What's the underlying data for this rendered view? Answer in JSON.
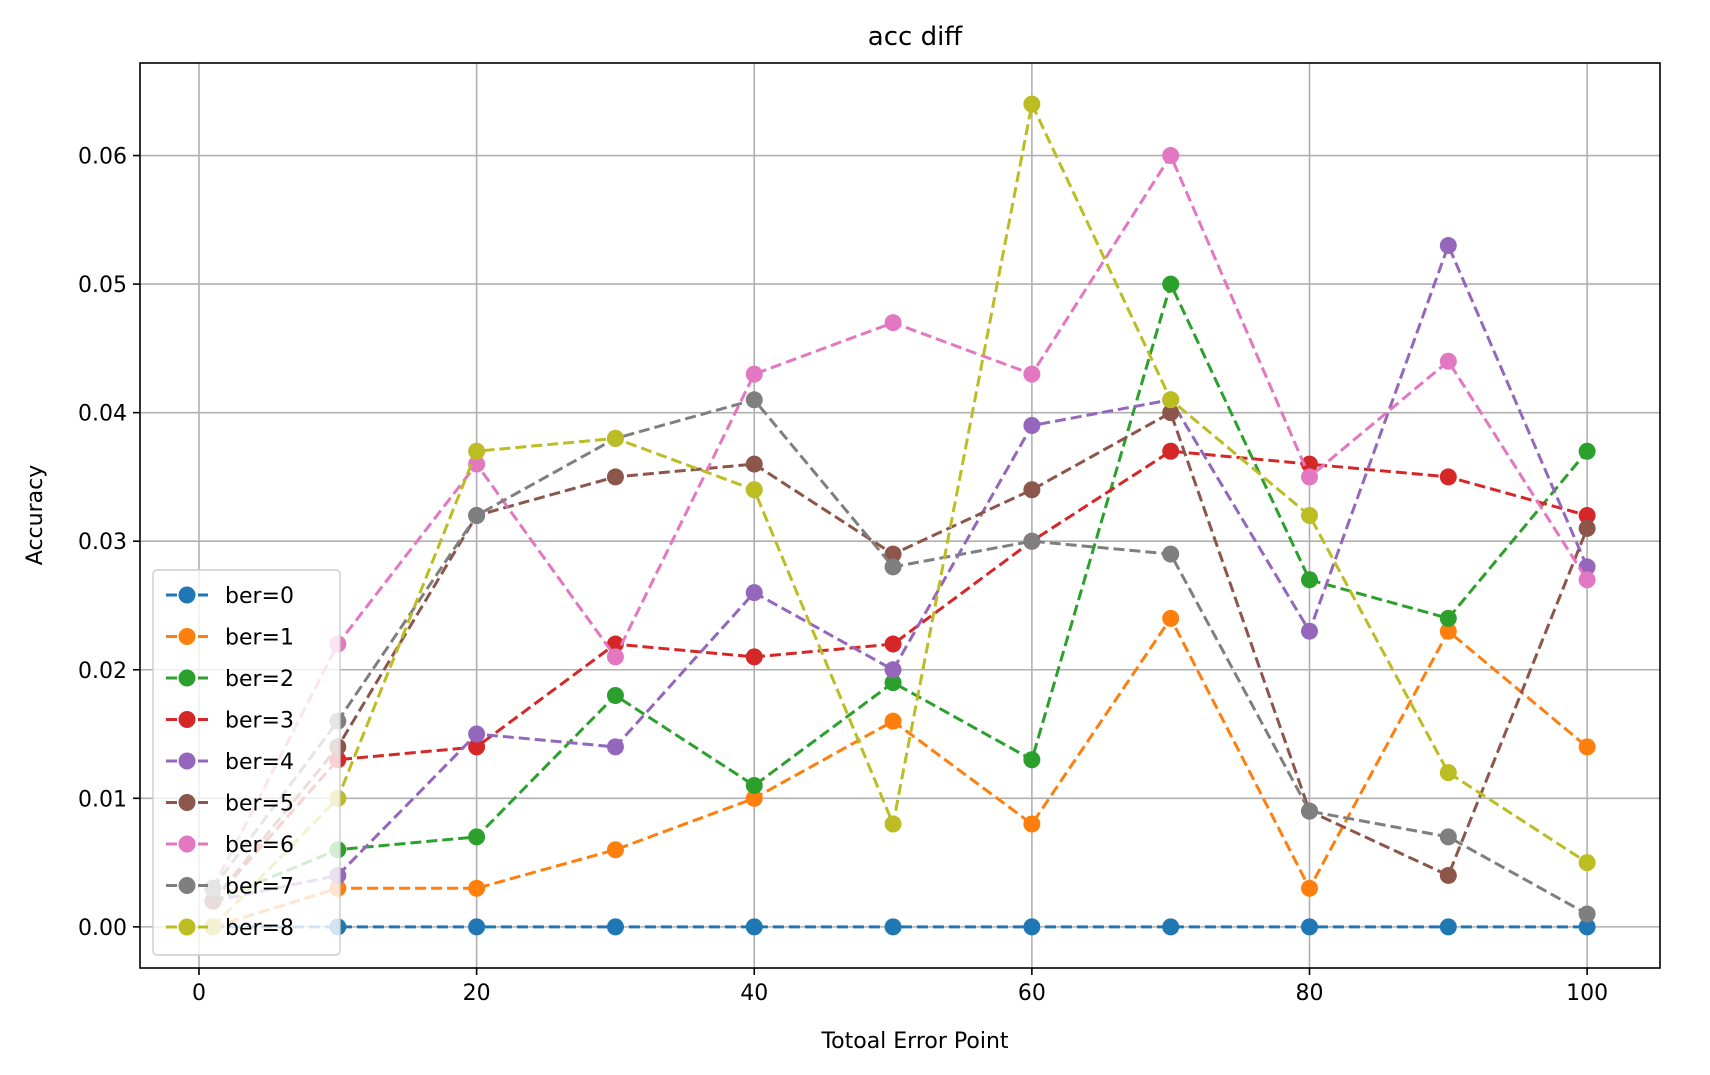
{
  "chart_data": {
    "type": "line",
    "title": "acc diff",
    "xlabel": "Totoal Error Point",
    "ylabel": "Accuracy",
    "xlim": [
      -4.25,
      105.25
    ],
    "ylim": [
      -0.0032,
      0.0672
    ],
    "xticks": [
      0,
      20,
      40,
      60,
      80,
      100
    ],
    "xtick_labels": [
      "0",
      "20",
      "40",
      "60",
      "80",
      "100"
    ],
    "yticks": [
      0.0,
      0.01,
      0.02,
      0.03,
      0.04,
      0.05,
      0.06
    ],
    "ytick_labels": [
      "0.00",
      "0.01",
      "0.02",
      "0.03",
      "0.04",
      "0.05",
      "0.06"
    ],
    "grid": true,
    "legend_position": "lower-left",
    "x": [
      1,
      10,
      20,
      30,
      40,
      50,
      60,
      70,
      80,
      90,
      100
    ],
    "series": [
      {
        "name": "ber=0",
        "color": "#1f77b4",
        "values": [
          0.0,
          0.0,
          0.0,
          0.0,
          0.0,
          0.0,
          0.0,
          0.0,
          0.0,
          0.0,
          0.0
        ]
      },
      {
        "name": "ber=1",
        "color": "#ff7f0e",
        "values": [
          0.0,
          0.003,
          0.003,
          0.006,
          0.01,
          0.016,
          0.008,
          0.024,
          0.003,
          0.023,
          0.014
        ]
      },
      {
        "name": "ber=2",
        "color": "#2ca02c",
        "values": [
          0.002,
          0.006,
          0.007,
          0.018,
          0.011,
          0.019,
          0.013,
          0.05,
          0.027,
          0.024,
          0.037
        ]
      },
      {
        "name": "ber=3",
        "color": "#d62728",
        "values": [
          0.002,
          0.013,
          0.014,
          0.022,
          0.021,
          0.022,
          0.03,
          0.037,
          0.036,
          0.035,
          0.032
        ]
      },
      {
        "name": "ber=4",
        "color": "#9467bd",
        "values": [
          0.002,
          0.004,
          0.015,
          0.014,
          0.026,
          0.02,
          0.039,
          0.041,
          0.023,
          0.053,
          0.028
        ]
      },
      {
        "name": "ber=5",
        "color": "#8c564b",
        "values": [
          0.002,
          0.014,
          0.032,
          0.035,
          0.036,
          0.029,
          0.034,
          0.04,
          0.009,
          0.004,
          0.031
        ]
      },
      {
        "name": "ber=6",
        "color": "#e377c2",
        "values": [
          0.003,
          0.022,
          0.036,
          0.021,
          0.043,
          0.047,
          0.043,
          0.06,
          0.035,
          0.044,
          0.027
        ]
      },
      {
        "name": "ber=7",
        "color": "#7f7f7f",
        "values": [
          0.003,
          0.016,
          0.032,
          0.038,
          0.041,
          0.028,
          0.03,
          0.029,
          0.009,
          0.007,
          0.001
        ]
      },
      {
        "name": "ber=8",
        "color": "#bcbd22",
        "values": [
          0.0,
          0.01,
          0.037,
          0.038,
          0.034,
          0.008,
          0.064,
          0.041,
          0.032,
          0.012,
          0.005
        ]
      }
    ]
  }
}
